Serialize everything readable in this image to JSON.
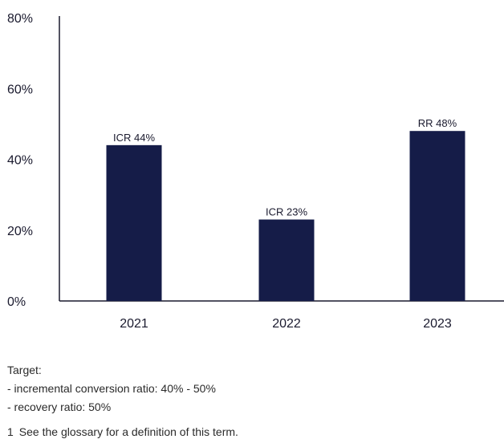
{
  "chart_data": {
    "type": "bar",
    "categories": [
      "2021",
      "2022",
      "2023"
    ],
    "values": [
      44,
      23,
      48
    ],
    "data_labels": [
      "ICR 44%",
      "ICR 23%",
      "RR 48%"
    ],
    "y_ticks": [
      "0%",
      "20%",
      "40%",
      "60%",
      "80%"
    ],
    "ylim": [
      0,
      80
    ],
    "grid": false,
    "bar_color": "#151c48",
    "axis_color": "#1a1a2e"
  },
  "notes": {
    "heading": "Target:",
    "lines": [
      "- incremental conversion ratio: 40% - 50%",
      "- recovery ratio: 50%"
    ]
  },
  "footnote": {
    "number": "1",
    "text": "See the glossary for a definition of this term."
  }
}
